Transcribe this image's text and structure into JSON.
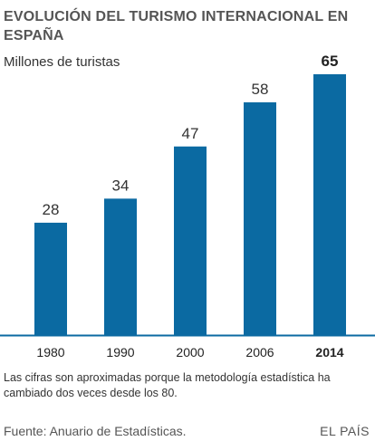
{
  "header": {
    "title": "EVOLUCIÓN DEL TURISMO INTERNACIONAL EN ESPAÑA",
    "subtitle": "Millones de turistas"
  },
  "footer": {
    "note": "Las cifras son aproximadas porque la metodología estadística ha cambiado dos veces desde los 80.",
    "source": "Fuente: Anuario de Estadísticas.",
    "brand": "EL PAÍS"
  },
  "colors": {
    "bar": "#0b6aa2",
    "baseline": "#0b6aa2",
    "value_label": "#333333",
    "highlight_label": "#222222"
  },
  "chart_data": {
    "type": "bar",
    "title": "EVOLUCIÓN DEL TURISMO INTERNACIONAL EN ESPAÑA",
    "subtitle": "Millones de turistas",
    "categories": [
      "1980",
      "1990",
      "2000",
      "2006",
      "2014"
    ],
    "values": [
      28,
      34,
      47,
      58,
      65
    ],
    "highlighted_category": "2014",
    "ylim": [
      0,
      65
    ],
    "grid": false,
    "data_labels": true
  }
}
